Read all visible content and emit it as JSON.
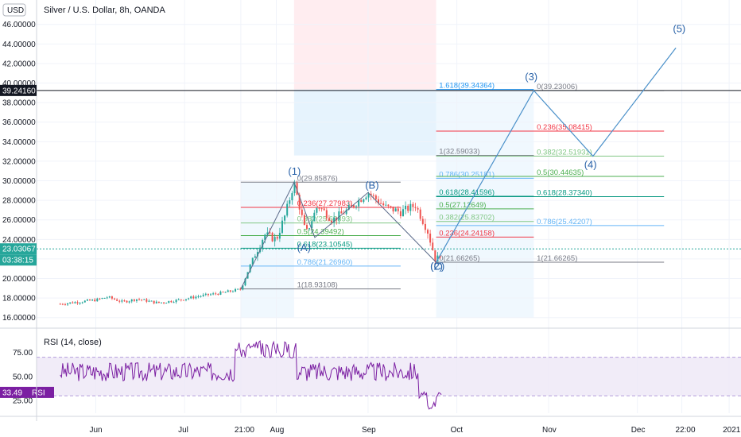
{
  "chart_data": [
    {
      "type": "candlestick",
      "title": "Silver / U.S. Dollar, 8h, OANDA",
      "currency_button": "USD",
      "ylim": [
        15.0,
        48.5
      ],
      "y_ticks": [
        "16.00000",
        "18.00000",
        "20.00000",
        "22.00000",
        "24.00000",
        "26.00000",
        "28.00000",
        "30.00000",
        "32.00000",
        "34.00000",
        "36.00000",
        "38.00000",
        "40.00000",
        "42.00000",
        "44.00000",
        "46.00000"
      ],
      "x_ticks": [
        "Jun",
        "Jul",
        "21:00",
        "Aug",
        "Sep",
        "Oct",
        "Nov",
        "Dec",
        "22:00",
        "2021"
      ],
      "price_path": [
        [
          "2020-05-20",
          17.4
        ],
        [
          "2020-06-01",
          17.8
        ],
        [
          "2020-06-05",
          18.1
        ],
        [
          "2020-06-10",
          17.6
        ],
        [
          "2020-06-15",
          17.9
        ],
        [
          "2020-06-22",
          17.5
        ],
        [
          "2020-06-29",
          17.8
        ],
        [
          "2020-07-06",
          18.2
        ],
        [
          "2020-07-13",
          18.5
        ],
        [
          "2020-07-20",
          18.9
        ],
        [
          "2020-07-24",
          22.0
        ],
        [
          "2020-07-28",
          24.5
        ],
        [
          "2020-08-01",
          24.0
        ],
        [
          "2020-08-04",
          26.5
        ],
        [
          "2020-08-07",
          29.8
        ],
        [
          "2020-08-11",
          24.5
        ],
        [
          "2020-08-15",
          27.5
        ],
        [
          "2020-08-20",
          26.0
        ],
        [
          "2020-08-25",
          27.0
        ],
        [
          "2020-09-01",
          28.8
        ],
        [
          "2020-09-07",
          27.3
        ],
        [
          "2020-09-12",
          26.8
        ],
        [
          "2020-09-17",
          27.5
        ],
        [
          "2020-09-21",
          25.0
        ],
        [
          "2020-09-24",
          21.7
        ],
        [
          "2020-09-26",
          23.0
        ]
      ],
      "horizontal_levels": [
        {
          "label": "39.24160",
          "value": 39.2416,
          "color": "#131722"
        },
        {
          "label": "23.03067",
          "value": 23.03067,
          "color": "#26a69a"
        }
      ],
      "countdown": "03:38:15",
      "fib_retracement_1": [
        {
          "label": "0(29.85876)",
          "value": 29.85876,
          "color": "#787b86"
        },
        {
          "label": "0.236(27.27983)",
          "value": 27.27983,
          "color": "#f23645"
        },
        {
          "label": "0.382(25.68393)",
          "value": 25.68393,
          "color": "#81c784"
        },
        {
          "label": "0.5(24.39492)",
          "value": 24.39492,
          "color": "#4caf50"
        },
        {
          "label": "0.618(23.10545)",
          "value": 23.10545,
          "color": "#089981"
        },
        {
          "label": "0.786(21.26960)",
          "value": 21.2696,
          "color": "#64b5f6"
        },
        {
          "label": "1(18.93108)",
          "value": 18.93108,
          "color": "#787b86"
        }
      ],
      "fib_retracement_2": [
        {
          "label": "0(21.66265)",
          "value": 21.66265,
          "color": "#787b86"
        },
        {
          "label": "0.236(24.24158)",
          "value": 24.24158,
          "color": "#f23645"
        },
        {
          "label": "0.382(25.83702)",
          "value": 25.83702,
          "color": "#81c784"
        },
        {
          "label": "0.5(27.12649)",
          "value": 27.12649,
          "color": "#4caf50"
        },
        {
          "label": "0.618(28.41596)",
          "value": 28.41596,
          "color": "#089981"
        },
        {
          "label": "0.786(30.25181)",
          "value": 30.25181,
          "color": "#64b5f6"
        },
        {
          "label": "1(32.59033)",
          "value": 32.59033,
          "color": "#787b86"
        },
        {
          "label": "1.618(39.34364)",
          "value": 39.34364,
          "color": "#2196f3"
        }
      ],
      "fib_retracement_3": [
        {
          "label": "0(39.23006)",
          "value": 39.23006,
          "color": "#787b86"
        },
        {
          "label": "0.236(35.08415)",
          "value": 35.08415,
          "color": "#f23645"
        },
        {
          "label": "0.382(32.51931)",
          "value": 32.51931,
          "color": "#81c784"
        },
        {
          "label": "0.5(30.44635)",
          "value": 30.44635,
          "color": "#4caf50"
        },
        {
          "label": "0.618(28.37340)",
          "value": 28.3734,
          "color": "#089981"
        },
        {
          "label": "0.786(25.42207)",
          "value": 25.42207,
          "color": "#64b5f6"
        },
        {
          "label": "1(21.66265)",
          "value": 21.66265,
          "color": "#787b86"
        }
      ],
      "wave_labels": [
        "(1)",
        "(A)",
        "(B)",
        "(C)",
        "(2)",
        "(3)",
        "(4)",
        "(5)"
      ],
      "wave_projection": [
        [
          "2020-09-24",
          21.66
        ],
        [
          "2020-10-27",
          39.23
        ],
        [
          "2020-11-16",
          32.52
        ],
        [
          "2020-12-14",
          43.6
        ]
      ]
    },
    {
      "type": "line",
      "title": "RSI (14, close)",
      "ylim": [
        12,
        96
      ],
      "y_ticks": [
        "25.00",
        "50.00",
        "75.00"
      ],
      "band": [
        30,
        70
      ],
      "current_label": "33.49",
      "current_suffix": "RSI",
      "series_color": "#7b1fa2"
    }
  ],
  "colors": {
    "up": "#26a69a",
    "down": "#ef5350",
    "wave": "#2962a8",
    "rsi": "#7b1fa2"
  }
}
